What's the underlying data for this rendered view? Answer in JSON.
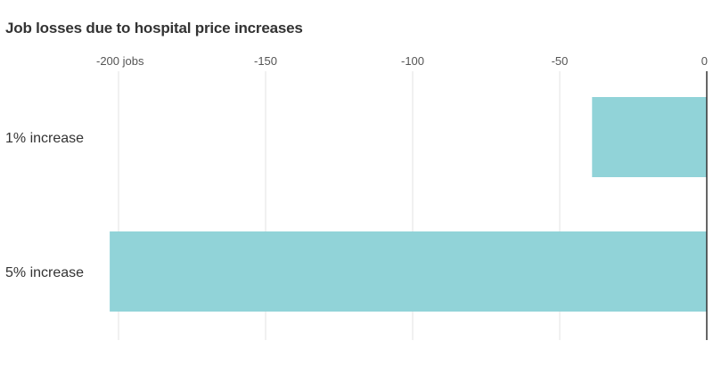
{
  "chart_data": {
    "type": "bar",
    "orientation": "horizontal",
    "title": "Job losses due to hospital price increases",
    "xlabel": "",
    "ylabel": "",
    "categories": [
      "1% increase",
      "5% increase"
    ],
    "values": [
      -39,
      -203
    ],
    "xlim": [
      -200,
      0
    ],
    "ticks": [
      {
        "value": -200,
        "label": "-200 jobs"
      },
      {
        "value": -150,
        "label": "-150"
      },
      {
        "value": -100,
        "label": "-100"
      },
      {
        "value": -50,
        "label": "-50"
      },
      {
        "value": 0,
        "label": "0"
      }
    ],
    "grid": true,
    "legend": "none",
    "bar_color": "#91d3d8",
    "grid_color": "#e3e3e3",
    "axis_color": "#333333"
  }
}
